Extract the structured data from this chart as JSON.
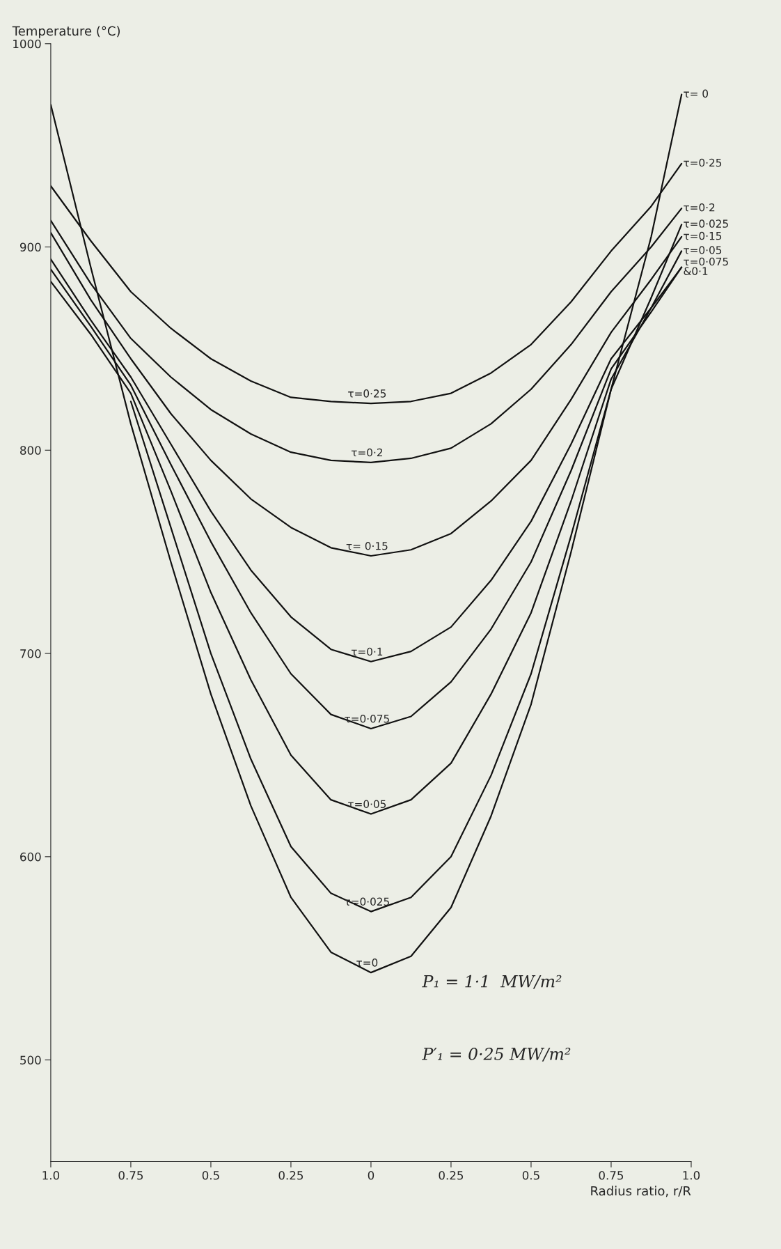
{
  "chart_data": {
    "type": "line",
    "xlabel": "Radius ratio, r/R",
    "ylabel": "Temperature (°C)",
    "x": [
      -1,
      -0.875,
      -0.75,
      -0.625,
      -0.5,
      -0.375,
      -0.25,
      -0.125,
      0,
      0.125,
      0.25,
      0.375,
      0.5,
      0.625,
      0.75,
      0.875,
      0.97
    ],
    "xlim": [
      -1,
      1
    ],
    "ylim": [
      450,
      1000
    ],
    "xticks": [
      {
        "value": -1,
        "label": "1.0"
      },
      {
        "value": -0.75,
        "label": "0.75"
      },
      {
        "value": -0.5,
        "label": "0.5"
      },
      {
        "value": -0.25,
        "label": "0.25"
      },
      0,
      {
        "value": 0.25,
        "label": "0.25"
      },
      {
        "value": 0.5,
        "label": "0.5"
      },
      {
        "value": 0.75,
        "label": "0.75"
      },
      {
        "value": 1,
        "label": "1.0"
      }
    ],
    "yticks": [
      500,
      600,
      700,
      800,
      900,
      1000
    ],
    "grid": false,
    "legend": false,
    "marker": "none",
    "line_style": "solid",
    "series": [
      {
        "name": "τ=0·25",
        "color": "#111111",
        "values": [
          930,
          903,
          878,
          860,
          845,
          834,
          826,
          824,
          823,
          824,
          828,
          838,
          852,
          873,
          898,
          920,
          941
        ]
      },
      {
        "name": "τ=0·2",
        "color": "#111111",
        "values": [
          913,
          882,
          855,
          836,
          820,
          808,
          799,
          795,
          794,
          796,
          801,
          813,
          830,
          852,
          878,
          900,
          919
        ]
      },
      {
        "name": "τ=0·15",
        "color": "#111111",
        "values": [
          907,
          874,
          845,
          818,
          795,
          776,
          762,
          752,
          748,
          751,
          759,
          775,
          795,
          825,
          858,
          884,
          905
        ]
      },
      {
        "color": "#111111",
        "values": [
          894,
          864,
          836,
          803,
          770,
          741,
          718,
          702,
          696,
          701,
          713,
          736,
          765,
          803,
          845,
          870,
          890
        ]
      },
      {
        "name": "τ=0·075\n&0·1",
        "color": "#111111",
        "values": [
          889,
          861,
          832,
          793,
          755,
          720,
          690,
          670,
          663,
          669,
          686,
          712,
          745,
          790,
          840,
          868,
          890
        ]
      },
      {
        "name": "τ=0·05",
        "color": "#111111",
        "values": [
          883,
          857,
          828,
          780,
          730,
          687,
          650,
          628,
          621,
          628,
          646,
          680,
          720,
          775,
          835,
          870,
          898
        ]
      },
      {
        "name": "τ=0·025",
        "color": "#111111",
        "values": [
          null,
          null,
          824,
          762,
          700,
          648,
          605,
          582,
          573,
          580,
          600,
          640,
          690,
          758,
          830,
          875,
          911
        ]
      },
      {
        "name": "τ= 0",
        "color": "#111111",
        "values": [
          970,
          890,
          813,
          745,
          680,
          625,
          580,
          553,
          543,
          551,
          575,
          620,
          675,
          750,
          830,
          905,
          975
        ]
      }
    ],
    "annotations": [
      "τ=0·25",
      "τ=0·2",
      "τ= 0·15",
      "τ=0·1",
      "τ=0·075",
      "τ=0·05",
      "τ=0·025",
      "τ=0",
      "P₁ = 1·1  MW/m²",
      "P′₁ = 0·25 MW/m²"
    ]
  }
}
